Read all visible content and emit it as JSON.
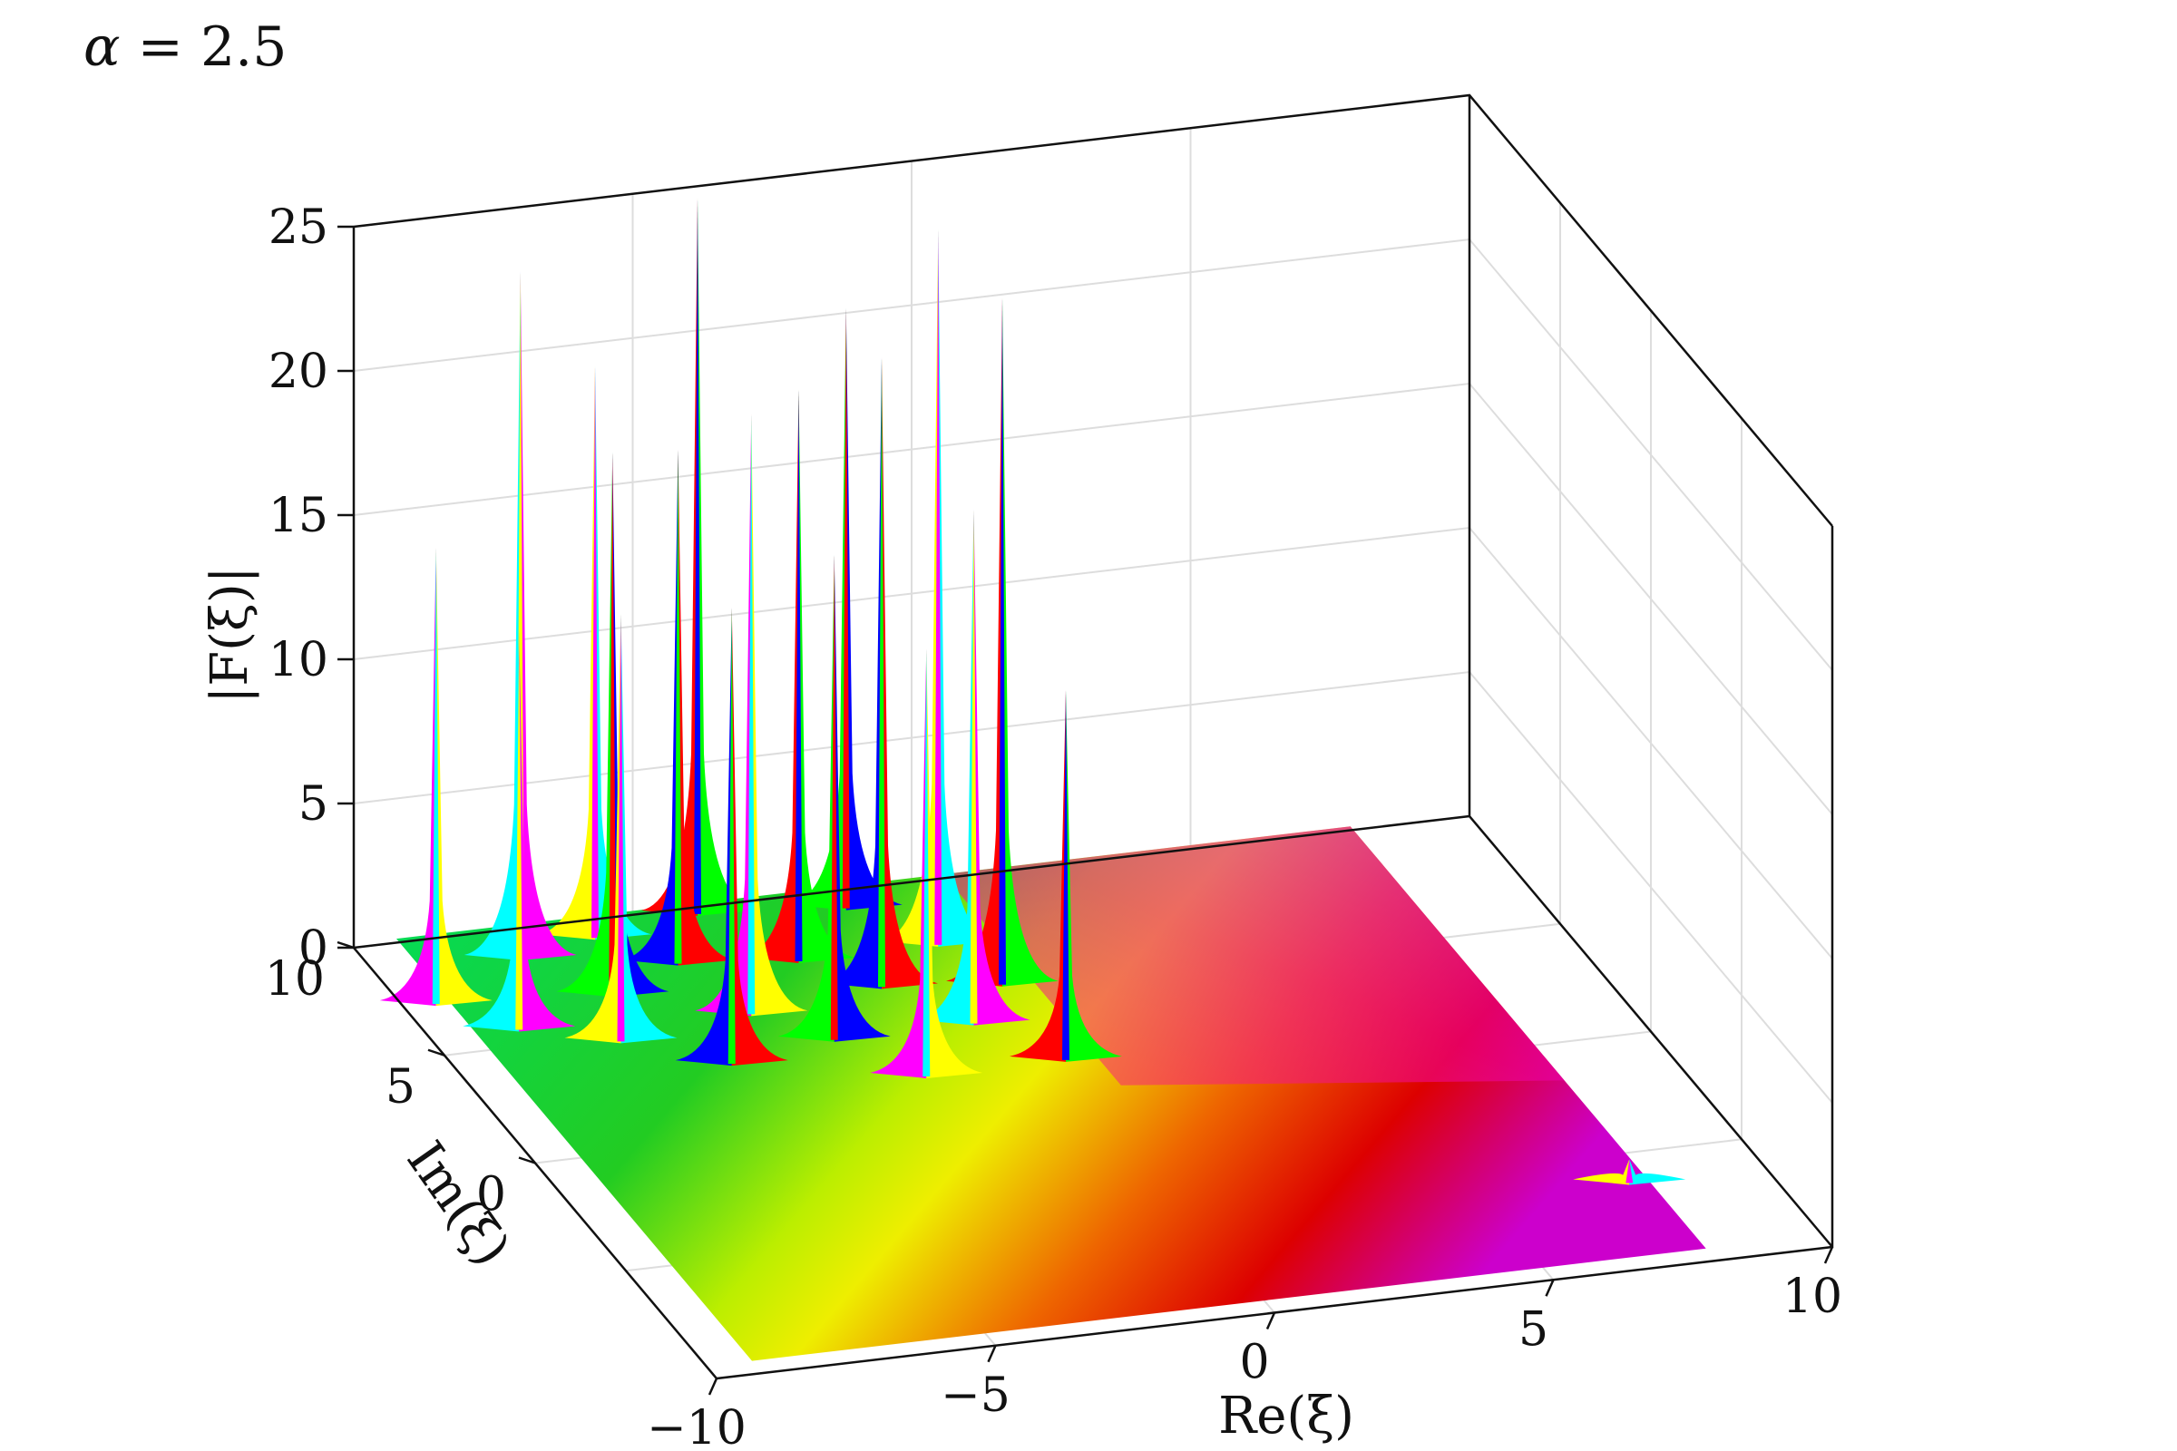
{
  "annotation": {
    "param_symbol": "α",
    "param_eq": " = ",
    "param_value": "2.5"
  },
  "chart_data": {
    "type": "surface",
    "title": "",
    "annotation": "α = 2.5",
    "alpha": 2.5,
    "xlabel": "Re(ξ)",
    "ylabel": "Im(ξ)",
    "zlabel": "|F(ξ)|",
    "xlim": [
      -10,
      10
    ],
    "ylim": [
      -10,
      10
    ],
    "zlim": [
      0,
      25
    ],
    "x_ticks": [
      -10,
      -5,
      0,
      5,
      10
    ],
    "x_tick_labels": [
      "−10",
      "−5",
      "0",
      "5",
      "10"
    ],
    "y_ticks": [
      0,
      5,
      10
    ],
    "y_tick_labels": [
      "0",
      "5",
      "10"
    ],
    "z_ticks": [
      0,
      5,
      10,
      15,
      20,
      25
    ],
    "z_tick_labels": [
      "0",
      "5",
      "10",
      "15",
      "20",
      "25"
    ],
    "grid": true,
    "color_encoding": "phase of F(ξ) (hue wheel)",
    "hue_colors": [
      "#ff0000",
      "#ffff00",
      "#00ff00",
      "#00ffff",
      "#0000ff",
      "#ff00ff"
    ],
    "poles": [
      {
        "re": -9.5,
        "im": 7.0,
        "peak": 16
      },
      {
        "re": -8.5,
        "im": 5.5,
        "peak": 14
      },
      {
        "re": -7.5,
        "im": 8.5,
        "peak": 24
      },
      {
        "re": -7.0,
        "im": 4.5,
        "peak": 15
      },
      {
        "re": -6.5,
        "im": 6.5,
        "peak": 19
      },
      {
        "re": -6.0,
        "im": 9.0,
        "peak": 20
      },
      {
        "re": -5.5,
        "im": 3.0,
        "peak": 16
      },
      {
        "re": -5.0,
        "im": 7.5,
        "peak": 18
      },
      {
        "re": -4.5,
        "im": 5.0,
        "peak": 21
      },
      {
        "re": -4.0,
        "im": 9.5,
        "peak": 25
      },
      {
        "re": -3.5,
        "im": 3.5,
        "peak": 17
      },
      {
        "re": -3.0,
        "im": 7.0,
        "peak": 20
      },
      {
        "re": -2.5,
        "im": 1.5,
        "peak": 15
      },
      {
        "re": -2.0,
        "im": 5.5,
        "peak": 22
      },
      {
        "re": -1.5,
        "im": 9.0,
        "peak": 21
      },
      {
        "re": -1.0,
        "im": 3.5,
        "peak": 18
      },
      {
        "re": -0.5,
        "im": 7.0,
        "peak": 25
      },
      {
        "re": 0.0,
        "im": 1.5,
        "peak": 13
      },
      {
        "re": 0.0,
        "im": 5.0,
        "peak": 24
      },
      {
        "re": 7.5,
        "im": -6.5,
        "peak": 1
      }
    ]
  }
}
